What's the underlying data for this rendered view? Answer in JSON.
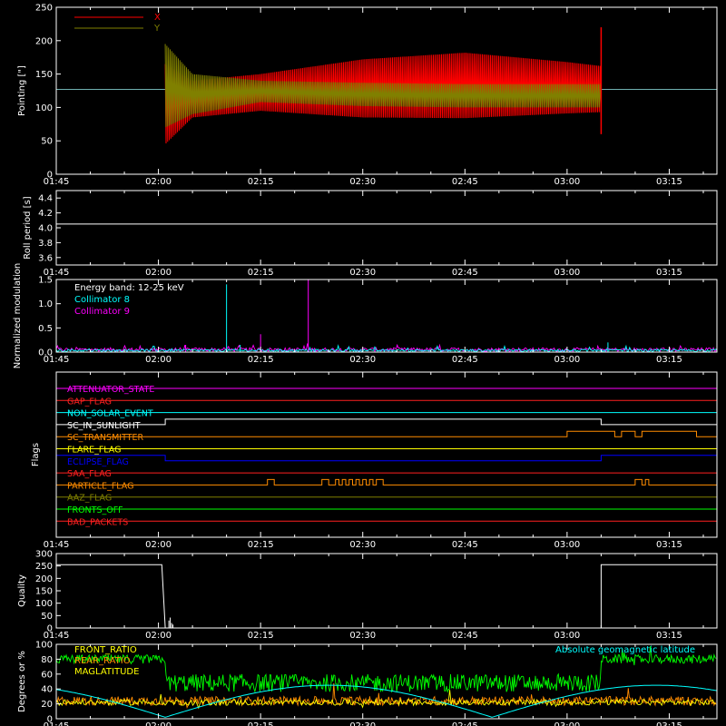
{
  "time_axis": {
    "tick_labels": [
      "01:45",
      "02:00",
      "02:15",
      "02:30",
      "02:45",
      "03:00",
      "03:15"
    ]
  },
  "colors": {
    "x_series": "#ff0000",
    "y_series": "#808000",
    "collimator_8": "#00ffff",
    "collimator_9": "#ff00ff",
    "front_ratio": "#00ff00",
    "rear_ratio": "#ff8c00",
    "geomag": "#00ffff",
    "mag_lat": "#ffff00"
  },
  "chart_data": [
    {
      "type": "line",
      "panel": "pointing",
      "ylabel": "Pointing [\"]",
      "yticks": [
        "0",
        "50",
        "100",
        "150",
        "200",
        "250"
      ],
      "ylim": [
        0,
        250
      ],
      "series": [
        {
          "name": "X",
          "baseline": 127,
          "envelope_t": [
            "02:01",
            "02:05",
            "02:15",
            "02:30",
            "02:45",
            "03:00",
            "03:05"
          ],
          "envelope_min": [
            45,
            85,
            95,
            85,
            84,
            91,
            93
          ],
          "envelope_max": [
            165,
            140,
            150,
            172,
            182,
            168,
            162
          ]
        },
        {
          "name": "Y",
          "baseline": 127,
          "envelope_t": [
            "02:01",
            "02:05",
            "02:15",
            "02:30",
            "02:45",
            "03:00",
            "03:05"
          ],
          "envelope_min": [
            70,
            90,
            108,
            102,
            100,
            100,
            100
          ],
          "envelope_max": [
            195,
            150,
            140,
            137,
            135,
            135,
            135
          ]
        }
      ],
      "active_range": [
        "02:01",
        "03:05"
      ]
    },
    {
      "type": "line",
      "panel": "roll_period",
      "ylabel": "Roll period [s]",
      "yticks": [
        "3.6",
        "3.8",
        "4.0",
        "4.2",
        "4.4"
      ],
      "ylim": [
        3.5,
        4.5
      ],
      "series": [
        {
          "name": "",
          "value": 4.05
        }
      ]
    },
    {
      "type": "line",
      "panel": "modulation",
      "ylabel": "Normalized modulation",
      "yticks": [
        "0.0",
        "0.5",
        "1.0",
        "1.5"
      ],
      "ylim": [
        0,
        1.5
      ],
      "annotation": "Energy band: 12-25 keV",
      "series": [
        {
          "name": "Collimator 8",
          "spikes": [
            {
              "t": "02:10",
              "v": 1.4
            },
            {
              "t": "02:12",
              "v": 0.15
            },
            {
              "t": "03:06",
              "v": 0.2
            }
          ]
        },
        {
          "name": "Collimator 9",
          "spikes": [
            {
              "t": "02:22",
              "v": 1.5
            },
            {
              "t": "02:15",
              "v": 0.37
            },
            {
              "t": "02:04",
              "v": 0.15
            }
          ]
        }
      ]
    },
    {
      "type": "line",
      "panel": "flags",
      "ylabel": "Flags",
      "flags": [
        {
          "name": "ATTENUATOR_STATE",
          "color": "#ff00ff",
          "pulses": []
        },
        {
          "name": "GAP_FLAG",
          "color": "#ff2020",
          "pulses": []
        },
        {
          "name": "NON_SOLAR_EVENT",
          "color": "#00ffff",
          "pulses": []
        },
        {
          "name": "SC_IN_SUNLIGHT",
          "color": "#ffffff",
          "pulses": [
            [
              "02:01",
              "03:05"
            ]
          ]
        },
        {
          "name": "SC_TRANSMITTER",
          "color": "#ff8c00",
          "pulses": [
            [
              "03:00",
              "03:07"
            ],
            [
              "03:08",
              "03:10"
            ],
            [
              "03:11",
              "03:19"
            ]
          ]
        },
        {
          "name": "FLARE_FLAG",
          "color": "#ffff00",
          "pulses": []
        },
        {
          "name": "ECLIPSE_FLAG",
          "color": "#0000ff",
          "pulses": [
            [
              "01:45",
              "02:01"
            ],
            [
              "03:05",
              "03:22"
            ]
          ]
        },
        {
          "name": "SAA_FLAG",
          "color": "#ff2020",
          "pulses": []
        },
        {
          "name": "PARTICLE_FLAG",
          "color": "#ff8c00",
          "pulses": [
            [
              "02:16",
              "02:17"
            ],
            [
              "02:24",
              "02:25"
            ],
            [
              "02:26",
              "02:26.5"
            ],
            [
              "02:27",
              "02:27.5"
            ],
            [
              "02:28",
              "02:28.5"
            ],
            [
              "02:29",
              "02:29.5"
            ],
            [
              "02:30",
              "02:30.5"
            ],
            [
              "02:31",
              "02:31.5"
            ],
            [
              "02:32",
              "02:33"
            ],
            [
              "03:10",
              "03:11"
            ],
            [
              "03:11.5",
              "03:12"
            ]
          ]
        },
        {
          "name": "AAZ_FLAG",
          "color": "#808000",
          "pulses": []
        },
        {
          "name": "FRONTS_OFF",
          "color": "#00ff00",
          "pulses": []
        },
        {
          "name": "BAD_PACKETS",
          "color": "#ff2020",
          "pulses": []
        }
      ]
    },
    {
      "type": "line",
      "panel": "quality",
      "ylabel": "Quality",
      "yticks": [
        "0",
        "50",
        "100",
        "150",
        "200",
        "250",
        "300"
      ],
      "ylim": [
        0,
        300
      ],
      "series": [
        {
          "name": "",
          "segments": [
            {
              "range": [
                "01:45",
                "02:00.5"
              ],
              "v": 255
            },
            {
              "range": [
                "02:01",
                "03:05"
              ],
              "v": 0
            },
            {
              "range": [
                "03:05",
                "03:22"
              ],
              "v": 255
            }
          ]
        }
      ]
    },
    {
      "type": "line",
      "panel": "ratios",
      "ylabel": "Degrees or %",
      "yticks": [
        "0",
        "20",
        "40",
        "60",
        "80",
        "100"
      ],
      "ylim": [
        0,
        100
      ],
      "annotation": "Absolute geomagnetic latitude",
      "series": [
        {
          "name": "FRONT_RATIO",
          "levels": [
            {
              "range": [
                "01:45",
                "02:01"
              ],
              "v": 80
            },
            {
              "range": [
                "02:01",
                "03:05"
              ],
              "v": 48
            },
            {
              "range": [
                "03:05",
                "03:22"
              ],
              "v": 80
            }
          ]
        },
        {
          "name": "REAR_RATIO",
          "levels": [
            {
              "range": [
                "01:45",
                "03:22"
              ],
              "v": 24
            }
          ]
        },
        {
          "name": "MAGLATITUDE",
          "levels": [
            {
              "range": [
                "01:45",
                "03:22"
              ],
              "v": 22
            }
          ]
        },
        {
          "name": "Absolute geomagnetic latitude",
          "min": 2,
          "max": 45
        }
      ]
    }
  ]
}
